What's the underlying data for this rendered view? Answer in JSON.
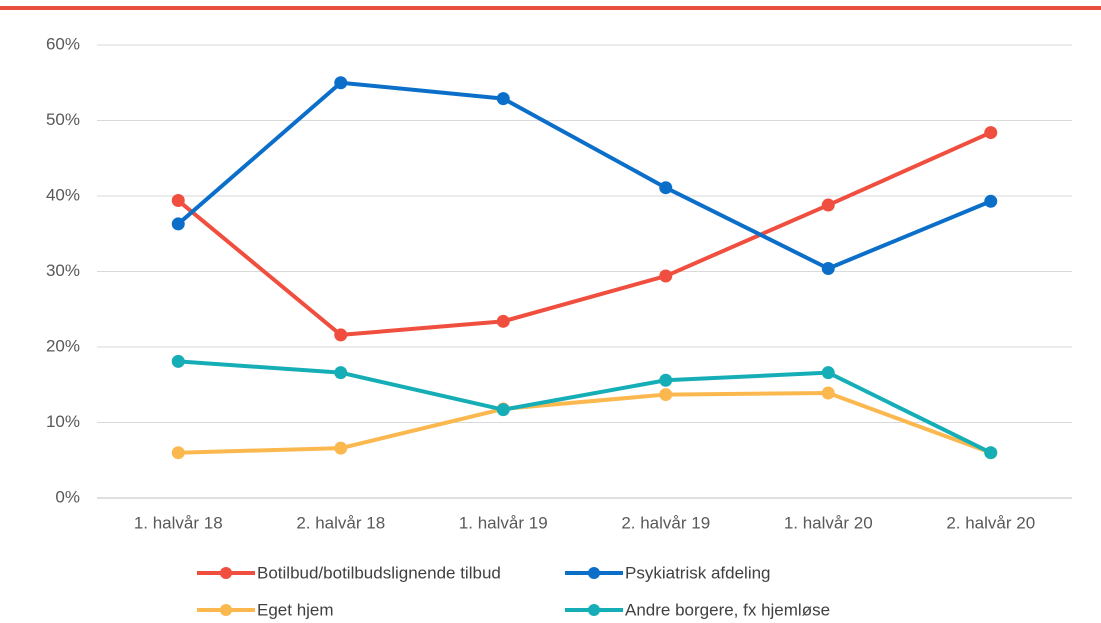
{
  "chart_data": {
    "type": "line",
    "categories": [
      "1. halvår 18",
      "2. halvår 18",
      "1. halvår 19",
      "2. halvår 19",
      "1. halvår 20",
      "2. halvår 20"
    ],
    "series": [
      {
        "name": "Botilbud/botilbudslignende tilbud",
        "color": "#f04e3e",
        "values": [
          39.4,
          21.6,
          23.4,
          29.4,
          38.8,
          48.4
        ]
      },
      {
        "name": "Psykiatrisk afdeling",
        "color": "#0b6fca",
        "values": [
          36.3,
          55.0,
          52.9,
          41.1,
          30.4,
          39.3
        ]
      },
      {
        "name": "Eget hjem",
        "color": "#fbb84f",
        "values": [
          6.0,
          6.6,
          11.8,
          13.7,
          13.9,
          6.0
        ]
      },
      {
        "name": "Andre borgere, fx hjemløse",
        "color": "#16aeb6",
        "values": [
          18.1,
          16.6,
          11.7,
          15.6,
          16.6,
          6.0
        ]
      }
    ],
    "ylim": [
      0,
      60
    ],
    "yticks": [
      {
        "value": 0,
        "label": "0%"
      },
      {
        "value": 10,
        "label": "10%"
      },
      {
        "value": 20,
        "label": "20%"
      },
      {
        "value": 30,
        "label": "30%"
      },
      {
        "value": 40,
        "label": "40%"
      },
      {
        "value": 50,
        "label": "50%"
      },
      {
        "value": 60,
        "label": "60%"
      }
    ],
    "grid": true,
    "legend": "bottom"
  }
}
